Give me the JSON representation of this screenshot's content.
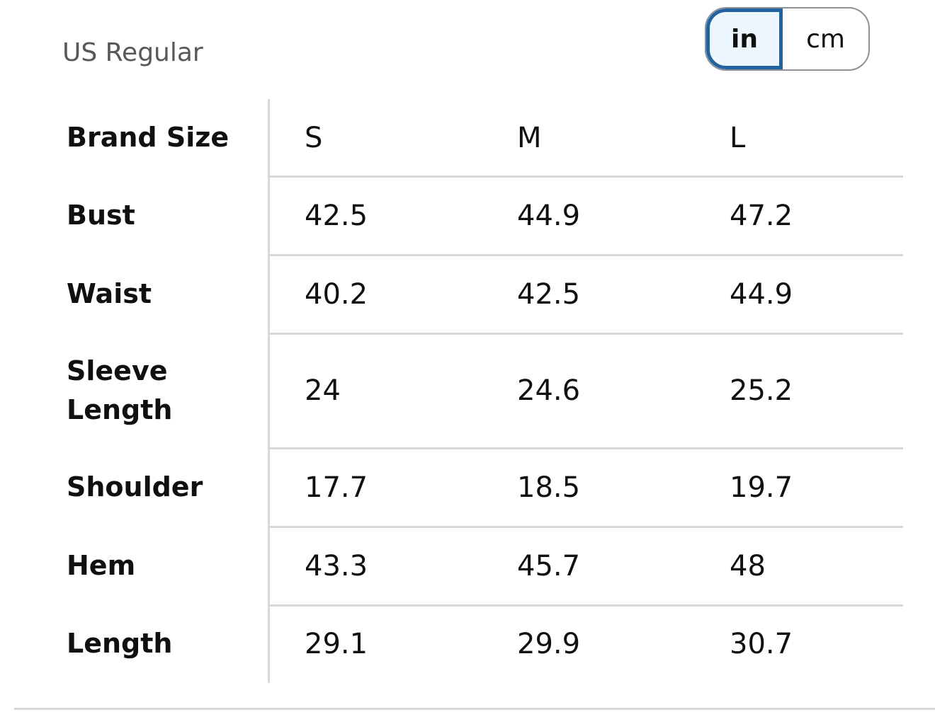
{
  "header": {
    "title": "US Regular"
  },
  "unit_toggle": {
    "options": [
      "in",
      "cm"
    ],
    "selected_index": 0
  },
  "table": {
    "columns": [
      "Brand Size",
      "S",
      "M",
      "L"
    ],
    "rows": [
      [
        "Bust",
        "42.5",
        "44.9",
        "47.2"
      ],
      [
        "Waist",
        "40.2",
        "42.5",
        "44.9"
      ],
      [
        "Sleeve Length",
        "24",
        "24.6",
        "25.2"
      ],
      [
        "Shoulder",
        "17.7",
        "18.5",
        "19.7"
      ],
      [
        "Hem",
        "43.3",
        "45.7",
        "48"
      ],
      [
        "Length",
        "29.1",
        "29.9",
        "30.7"
      ]
    ]
  }
}
